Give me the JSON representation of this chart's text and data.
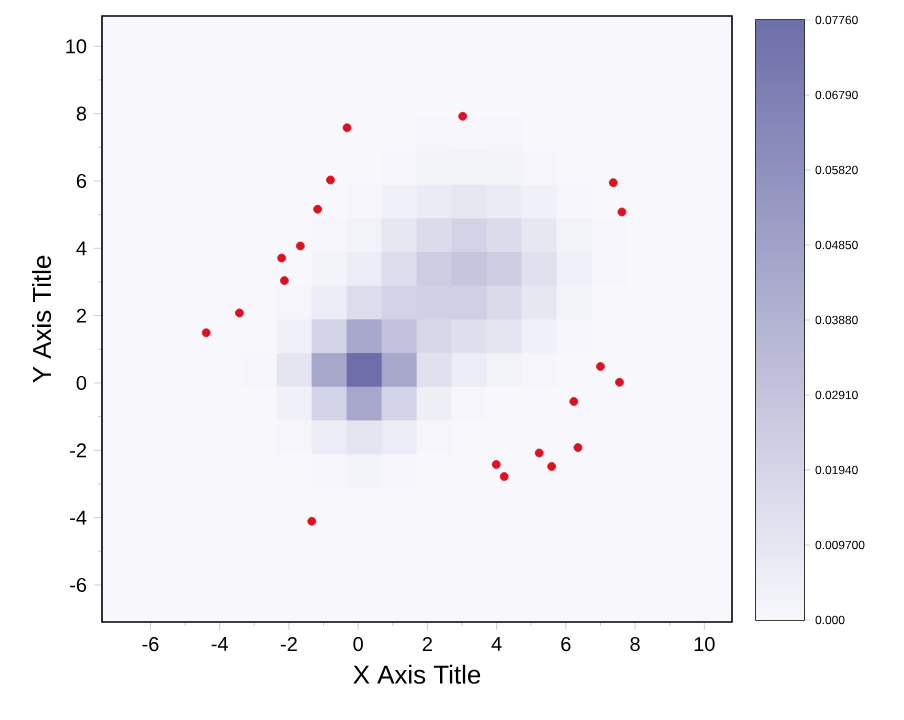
{
  "chart_data": [
    {
      "type": "heatmap",
      "categories": [
        null,
        null,
        null,
        null,
        null,
        null,
        null,
        null,
        null,
        null,
        null,
        null,
        null,
        null,
        null,
        null,
        null,
        null
      ],
      "y_categories": [
        null,
        null,
        null,
        null,
        null,
        null,
        null,
        null,
        null,
        null,
        null,
        null,
        null,
        null,
        null,
        null,
        null,
        null
      ],
      "clim": [
        0,
        0.0776
      ],
      "cticks": [
        {
          "value": 0,
          "label": "0.000"
        },
        {
          "value": 0.0097,
          "label": "0.009700"
        },
        {
          "value": 0.0194,
          "label": "0.01940"
        },
        {
          "value": 0.0291,
          "label": "0.02910"
        },
        {
          "value": 0.0388,
          "label": "0.03880"
        },
        {
          "value": 0.0485,
          "label": "0.04850"
        },
        {
          "value": 0.0582,
          "label": "0.05820"
        },
        {
          "value": 0.0679,
          "label": "0.06790"
        },
        {
          "value": 0.0776,
          "label": "0.07760"
        }
      ],
      "cells": [
        [
          0,
          0,
          0,
          0,
          0,
          0,
          0,
          0,
          0,
          0,
          0,
          0,
          0,
          0,
          0,
          0,
          0,
          0
        ],
        [
          0,
          0,
          0,
          0,
          0,
          0,
          0,
          0,
          0,
          0,
          0,
          0,
          0,
          0,
          0,
          0,
          0,
          0
        ],
        [
          0,
          0,
          0,
          0,
          0,
          0,
          0,
          0,
          0,
          0,
          0,
          0,
          0,
          0,
          0,
          0,
          0,
          0
        ],
        [
          0,
          0,
          0,
          0,
          0,
          0,
          0,
          0,
          0,
          0.001,
          0.001,
          0.001,
          0,
          0,
          0,
          0,
          0,
          0
        ],
        [
          0,
          0,
          0,
          0,
          0,
          0,
          0,
          0,
          0.001,
          0.002,
          0.003,
          0.002,
          0.001,
          0,
          0,
          0,
          0,
          0
        ],
        [
          0,
          0,
          0,
          0,
          0,
          0,
          0,
          0.001,
          0.004,
          0.007,
          0.009,
          0.007,
          0.004,
          0.001,
          0,
          0,
          0,
          0
        ],
        [
          0,
          0,
          0,
          0,
          0,
          0,
          0.001,
          0.003,
          0.009,
          0.016,
          0.02,
          0.016,
          0.009,
          0.003,
          0.001,
          0,
          0,
          0
        ],
        [
          0,
          0,
          0,
          0,
          0,
          0,
          0.002,
          0.006,
          0.015,
          0.024,
          0.028,
          0.024,
          0.013,
          0.004,
          0.001,
          0,
          0,
          0
        ],
        [
          0,
          0,
          0,
          0,
          0,
          0.001,
          0.006,
          0.015,
          0.02,
          0.022,
          0.022,
          0.017,
          0.009,
          0.003,
          0,
          0,
          0,
          0
        ],
        [
          0,
          0,
          0,
          0,
          0,
          0.004,
          0.02,
          0.045,
          0.03,
          0.018,
          0.014,
          0.01,
          0.004,
          0.001,
          0,
          0,
          0,
          0
        ],
        [
          0,
          0,
          0,
          0,
          0.001,
          0.01,
          0.045,
          0.0776,
          0.045,
          0.013,
          0.006,
          0.003,
          0.001,
          0,
          0,
          0,
          0,
          0
        ],
        [
          0,
          0,
          0,
          0,
          0,
          0.004,
          0.02,
          0.045,
          0.02,
          0.005,
          0.001,
          0,
          0,
          0,
          0,
          0,
          0,
          0
        ],
        [
          0,
          0,
          0,
          0,
          0,
          0.001,
          0.006,
          0.01,
          0.006,
          0.001,
          0,
          0,
          0,
          0,
          0,
          0,
          0,
          0
        ],
        [
          0,
          0,
          0,
          0,
          0,
          0,
          0.001,
          0.002,
          0.001,
          0,
          0,
          0,
          0,
          0,
          0,
          0,
          0,
          0
        ],
        [
          0,
          0,
          0,
          0,
          0,
          0,
          0,
          0,
          0,
          0,
          0,
          0,
          0,
          0,
          0,
          0,
          0,
          0
        ],
        [
          0,
          0,
          0,
          0,
          0,
          0,
          0,
          0,
          0,
          0,
          0,
          0,
          0,
          0,
          0,
          0,
          0,
          0
        ],
        [
          0,
          0,
          0,
          0,
          0,
          0,
          0,
          0,
          0,
          0,
          0,
          0,
          0,
          0,
          0,
          0,
          0,
          0
        ],
        [
          0,
          0,
          0,
          0,
          0,
          0,
          0,
          0,
          0,
          0,
          0,
          0,
          0,
          0,
          0,
          0,
          0,
          0
        ]
      ]
    },
    {
      "type": "scatter",
      "xlabel": "X Axis Title",
      "ylabel": "Y Axis Title",
      "xlim": [
        -7.4,
        10.8
      ],
      "ylim": [
        -7.1,
        10.9
      ],
      "xticks": [
        -6,
        -4,
        -2,
        0,
        2,
        4,
        6,
        8,
        10
      ],
      "yticks": [
        -6,
        -4,
        -2,
        0,
        2,
        4,
        6,
        8,
        10
      ],
      "series": [
        {
          "color": "#dd1122",
          "x": [
            -4.39,
            -3.43,
            -2.21,
            -2.13,
            -1.67,
            -1.17,
            -0.8,
            -0.32,
            3.02,
            7.37,
            7.62,
            7.0,
            7.55,
            6.23,
            6.35,
            5.23,
            5.59,
            3.99,
            4.22,
            -1.34
          ],
          "values": [
            1.49,
            2.08,
            3.71,
            3.04,
            4.07,
            5.16,
            6.03,
            7.58,
            7.92,
            5.95,
            5.08,
            0.49,
            0.02,
            -0.55,
            -1.92,
            -2.08,
            -2.48,
            -2.42,
            -2.78,
            -4.11
          ]
        }
      ]
    }
  ]
}
